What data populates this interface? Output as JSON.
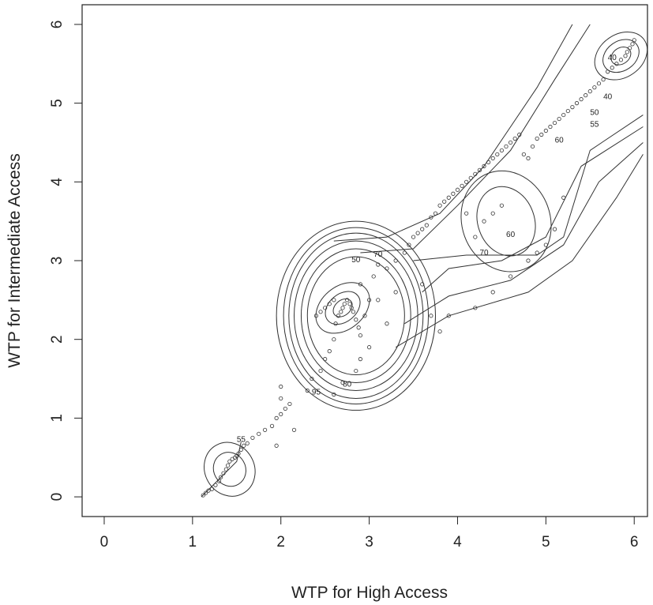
{
  "chart_data": {
    "type": "scatter",
    "title": "",
    "xlabel": "WTP for High Access",
    "ylabel": "WTP for Intermediate Access",
    "xlim": [
      -0.25,
      6.15
    ],
    "ylim": [
      -0.25,
      6.25
    ],
    "xticks": [
      0,
      1,
      2,
      3,
      4,
      5,
      6
    ],
    "yticks": [
      0,
      1,
      2,
      3,
      4,
      5,
      6
    ],
    "grid": false,
    "legend": "none",
    "contour_labels": [
      {
        "text": "95",
        "x": 2.4,
        "y": 1.3
      },
      {
        "text": "80",
        "x": 2.75,
        "y": 1.4
      },
      {
        "text": "70",
        "x": 3.1,
        "y": 3.05
      },
      {
        "text": "50",
        "x": 2.85,
        "y": 2.98
      },
      {
        "text": "60",
        "x": 4.6,
        "y": 3.3
      },
      {
        "text": "70",
        "x": 4.3,
        "y": 3.07
      },
      {
        "text": "55",
        "x": 5.55,
        "y": 4.7
      },
      {
        "text": "50",
        "x": 5.55,
        "y": 4.85
      },
      {
        "text": "60",
        "x": 5.15,
        "y": 4.5
      },
      {
        "text": "40",
        "x": 5.75,
        "y": 5.55
      },
      {
        "text": "40",
        "x": 5.7,
        "y": 5.05
      },
      {
        "text": "55",
        "x": 1.55,
        "y": 0.7
      }
    ],
    "points": [
      [
        1.12,
        0.02
      ],
      [
        1.15,
        0.05
      ],
      [
        1.18,
        0.08
      ],
      [
        1.22,
        0.1
      ],
      [
        1.26,
        0.15
      ],
      [
        1.3,
        0.2
      ],
      [
        1.32,
        0.25
      ],
      [
        1.35,
        0.3
      ],
      [
        1.38,
        0.35
      ],
      [
        1.4,
        0.4
      ],
      [
        1.42,
        0.45
      ],
      [
        1.45,
        0.48
      ],
      [
        1.48,
        0.5
      ],
      [
        1.5,
        0.52
      ],
      [
        1.52,
        0.55
      ],
      [
        1.55,
        0.6
      ],
      [
        1.58,
        0.65
      ],
      [
        1.62,
        0.68
      ],
      [
        1.68,
        0.75
      ],
      [
        1.75,
        0.8
      ],
      [
        1.82,
        0.85
      ],
      [
        1.9,
        0.9
      ],
      [
        1.95,
        1.0
      ],
      [
        2.0,
        1.05
      ],
      [
        2.05,
        1.12
      ],
      [
        2.1,
        1.18
      ],
      [
        2.15,
        0.85
      ],
      [
        1.95,
        0.65
      ],
      [
        2.0,
        1.25
      ],
      [
        2.0,
        1.4
      ],
      [
        2.3,
        1.35
      ],
      [
        2.35,
        1.5
      ],
      [
        2.45,
        1.6
      ],
      [
        2.5,
        1.75
      ],
      [
        2.55,
        1.85
      ],
      [
        2.6,
        2.0
      ],
      [
        2.62,
        2.2
      ],
      [
        2.65,
        2.3
      ],
      [
        2.68,
        2.35
      ],
      [
        2.7,
        2.4
      ],
      [
        2.72,
        2.45
      ],
      [
        2.75,
        2.5
      ],
      [
        2.78,
        2.45
      ],
      [
        2.8,
        2.4
      ],
      [
        2.82,
        2.35
      ],
      [
        2.85,
        2.25
      ],
      [
        2.88,
        2.15
      ],
      [
        2.9,
        2.05
      ],
      [
        2.95,
        2.3
      ],
      [
        3.0,
        2.5
      ],
      [
        2.4,
        2.3
      ],
      [
        2.45,
        2.35
      ],
      [
        2.5,
        2.4
      ],
      [
        2.55,
        2.45
      ],
      [
        2.6,
        2.5
      ],
      [
        2.9,
        2.7
      ],
      [
        3.05,
        2.8
      ],
      [
        3.1,
        2.95
      ],
      [
        3.2,
        2.9
      ],
      [
        3.3,
        3.0
      ],
      [
        3.4,
        3.1
      ],
      [
        3.45,
        3.2
      ],
      [
        3.5,
        3.3
      ],
      [
        3.55,
        3.35
      ],
      [
        3.6,
        3.4
      ],
      [
        3.65,
        3.45
      ],
      [
        3.7,
        3.55
      ],
      [
        3.75,
        3.6
      ],
      [
        3.8,
        3.7
      ],
      [
        3.85,
        3.75
      ],
      [
        3.9,
        3.8
      ],
      [
        3.95,
        3.85
      ],
      [
        4.0,
        3.9
      ],
      [
        4.05,
        3.95
      ],
      [
        4.1,
        4.0
      ],
      [
        4.15,
        4.05
      ],
      [
        4.2,
        4.1
      ],
      [
        4.25,
        4.15
      ],
      [
        4.3,
        4.2
      ],
      [
        4.35,
        4.25
      ],
      [
        4.4,
        4.3
      ],
      [
        4.45,
        4.35
      ],
      [
        4.5,
        4.4
      ],
      [
        4.55,
        4.45
      ],
      [
        4.6,
        4.5
      ],
      [
        4.65,
        4.55
      ],
      [
        4.7,
        4.6
      ],
      [
        4.75,
        4.35
      ],
      [
        4.8,
        4.3
      ],
      [
        4.85,
        4.45
      ],
      [
        4.9,
        4.55
      ],
      [
        4.95,
        4.6
      ],
      [
        5.0,
        4.65
      ],
      [
        5.05,
        4.7
      ],
      [
        5.1,
        4.75
      ],
      [
        5.15,
        4.8
      ],
      [
        5.2,
        4.85
      ],
      [
        5.25,
        4.9
      ],
      [
        5.3,
        4.95
      ],
      [
        5.35,
        5.0
      ],
      [
        5.4,
        5.05
      ],
      [
        5.45,
        5.1
      ],
      [
        5.5,
        5.15
      ],
      [
        5.55,
        5.2
      ],
      [
        5.6,
        5.25
      ],
      [
        5.65,
        5.3
      ],
      [
        5.7,
        5.4
      ],
      [
        5.75,
        5.45
      ],
      [
        5.8,
        5.5
      ],
      [
        5.85,
        5.55
      ],
      [
        5.9,
        5.6
      ],
      [
        5.92,
        5.65
      ],
      [
        5.95,
        5.7
      ],
      [
        5.98,
        5.75
      ],
      [
        6.0,
        5.8
      ],
      [
        4.2,
        3.3
      ],
      [
        4.3,
        3.5
      ],
      [
        4.4,
        3.6
      ],
      [
        4.5,
        3.7
      ],
      [
        4.1,
        3.6
      ],
      [
        3.6,
        2.7
      ],
      [
        3.7,
        2.3
      ],
      [
        3.8,
        2.1
      ],
      [
        3.9,
        2.3
      ],
      [
        4.2,
        2.4
      ],
      [
        4.4,
        2.6
      ],
      [
        4.6,
        2.8
      ],
      [
        4.8,
        3.0
      ],
      [
        4.9,
        3.1
      ],
      [
        5.0,
        3.2
      ],
      [
        5.1,
        3.4
      ],
      [
        5.2,
        3.8
      ],
      [
        3.3,
        2.6
      ],
      [
        3.2,
        2.2
      ],
      [
        3.0,
        1.9
      ],
      [
        2.85,
        1.6
      ],
      [
        2.7,
        1.45
      ],
      [
        2.6,
        1.3
      ],
      [
        2.9,
        1.75
      ],
      [
        3.1,
        2.5
      ]
    ]
  }
}
